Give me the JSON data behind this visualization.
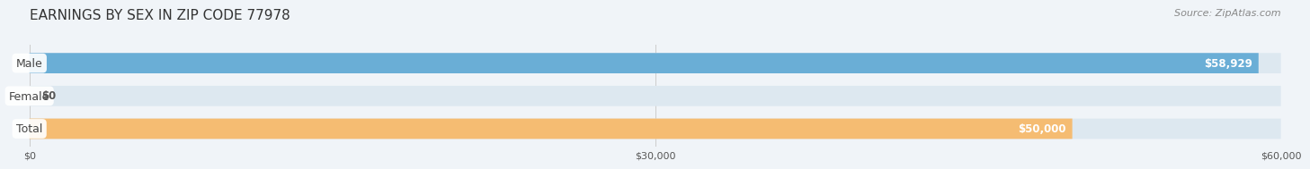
{
  "title": "EARNINGS BY SEX IN ZIP CODE 77978",
  "source": "Source: ZipAtlas.com",
  "categories": [
    "Male",
    "Female",
    "Total"
  ],
  "values": [
    58929,
    0,
    50000
  ],
  "max_value": 60000,
  "bar_colors": [
    "#6aaed6",
    "#f4a0b0",
    "#f5bc72"
  ],
  "label_colors": [
    "#ffffff",
    "#ffffff",
    "#ffffff"
  ],
  "value_labels": [
    "$58,929",
    "$0",
    "$50,000"
  ],
  "bar_bg_color": "#dde8f0",
  "xticks": [
    0,
    30000,
    60000
  ],
  "xtick_labels": [
    "$0",
    "$30,000",
    "$60,000"
  ],
  "background_color": "#f0f4f8",
  "bar_height": 0.62,
  "title_fontsize": 11,
  "bar_label_fontsize": 9,
  "value_label_fontsize": 8.5,
  "source_fontsize": 8
}
